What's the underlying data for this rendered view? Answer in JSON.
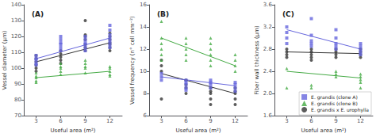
{
  "chart_data": [
    {
      "type": "scatter",
      "title": "(A)",
      "xlabel": "Useful area (m²)",
      "ylabel": "Vessel diameter (μm)",
      "xlim": [
        1.5,
        13.5
      ],
      "xticks": [
        3,
        6,
        9,
        12
      ],
      "ylim": [
        70,
        140
      ],
      "yticks": [
        70,
        80,
        90,
        100,
        110,
        120,
        130,
        140
      ],
      "grid": false,
      "series": [
        {
          "type": "scatter",
          "color": "#333333",
          "marker": "circle",
          "x": [
            3,
            3,
            3,
            3,
            3,
            3,
            6,
            6,
            6,
            6,
            6,
            9,
            9,
            9,
            9,
            9,
            9,
            9,
            12,
            12,
            12,
            12,
            12,
            12,
            12
          ],
          "values": [
            108,
            106,
            104,
            102,
            100,
            98,
            111,
            109,
            107,
            105,
            103,
            130,
            121,
            120,
            118,
            115,
            113,
            111,
            122,
            120,
            118,
            116,
            115,
            113,
            111
          ]
        },
        {
          "type": "scatter",
          "color": "#44aa44",
          "marker": "triangle",
          "x": [
            3,
            3,
            3,
            3,
            3,
            6,
            6,
            6,
            6,
            6,
            9,
            9,
            9,
            9,
            9,
            12,
            12,
            12,
            12,
            12
          ],
          "values": [
            97,
            95,
            94,
            92,
            91,
            103,
            101,
            100,
            98,
            96,
            105,
            103,
            101,
            100,
            97,
            101,
            100,
            98,
            96,
            95
          ]
        },
        {
          "type": "scatter",
          "color": "#6666dd",
          "marker": "square",
          "x": [
            3,
            3,
            3,
            3,
            3,
            6,
            6,
            6,
            6,
            6,
            6,
            9,
            9,
            9,
            9,
            9,
            9,
            12,
            12,
            12,
            12,
            12,
            12,
            12
          ],
          "values": [
            108,
            106,
            105,
            103,
            102,
            120,
            118,
            116,
            115,
            113,
            111,
            120,
            118,
            116,
            115,
            113,
            111,
            127,
            124,
            121,
            119,
            117,
            115,
            113
          ]
        },
        {
          "type": "line",
          "color": "#333333",
          "x": [
            3,
            12
          ],
          "values": [
            104,
            116
          ]
        },
        {
          "type": "line",
          "color": "#6666dd",
          "x": [
            3,
            12
          ],
          "values": [
            106,
            119
          ]
        },
        {
          "type": "line",
          "color": "#44aa44",
          "x": [
            3,
            12
          ],
          "values": [
            94,
            98
          ]
        }
      ]
    },
    {
      "type": "scatter",
      "title": "(B)",
      "xlabel": "Useful area (m²)",
      "ylabel": "Vessel frequency (n° cell mm⁻²)",
      "xlim": [
        1.5,
        13.5
      ],
      "xticks": [
        3,
        6,
        9,
        12
      ],
      "ylim": [
        6,
        16
      ],
      "yticks": [
        6,
        8,
        10,
        12,
        14,
        16
      ],
      "grid": false,
      "series": [
        {
          "type": "scatter",
          "color": "#333333",
          "marker": "circle",
          "x": [
            3,
            3,
            3,
            3,
            6,
            6,
            6,
            6,
            9,
            9,
            9,
            9,
            9,
            12,
            12,
            12,
            12,
            12
          ],
          "values": [
            7.5,
            11.0,
            10.5,
            10.0,
            9.2,
            8.8,
            8.5,
            8.0,
            8.5,
            8.2,
            8.0,
            7.5,
            7.0,
            8.5,
            8.2,
            8.0,
            7.5,
            7.0
          ]
        },
        {
          "type": "scatter",
          "color": "#44aa44",
          "marker": "triangle",
          "x": [
            3,
            3,
            3,
            3,
            3,
            3,
            6,
            6,
            6,
            6,
            6,
            9,
            9,
            9,
            9,
            9,
            9,
            12,
            12,
            12,
            12
          ],
          "values": [
            14.5,
            13.0,
            12.5,
            12.0,
            11.5,
            11.0,
            13.0,
            12.5,
            12.0,
            11.5,
            11.0,
            13.0,
            12.5,
            12.0,
            11.5,
            11.0,
            10.5,
            11.5,
            11.0,
            10.5,
            10.0
          ]
        },
        {
          "type": "scatter",
          "color": "#6666dd",
          "marker": "square",
          "x": [
            3,
            3,
            3,
            6,
            6,
            6,
            6,
            6,
            9,
            9,
            9,
            9,
            12,
            12,
            12,
            12
          ],
          "values": [
            9.8,
            9.5,
            9.2,
            9.2,
            9.0,
            8.8,
            8.5,
            8.3,
            9.2,
            9.0,
            8.8,
            8.5,
            9.0,
            8.8,
            8.5,
            8.2
          ]
        },
        {
          "type": "line",
          "color": "#333333",
          "x": [
            3,
            12
          ],
          "values": [
            9.8,
            8.0
          ]
        },
        {
          "type": "line",
          "color": "#6666dd",
          "x": [
            3,
            12
          ],
          "values": [
            9.5,
            8.7
          ]
        },
        {
          "type": "line",
          "color": "#44aa44",
          "x": [
            3,
            12
          ],
          "values": [
            13.0,
            10.5
          ]
        }
      ]
    },
    {
      "type": "scatter",
      "title": "(C)",
      "xlabel": "Useful area (m²)",
      "ylabel": "Fiber wall thickness (μm)",
      "xlim": [
        1.5,
        13.5
      ],
      "xticks": [
        3,
        6,
        9,
        12
      ],
      "ylim": [
        1.6,
        3.6
      ],
      "yticks": [
        1.6,
        {
          "value": 2.0,
          "label": "2.0"
        },
        2.4,
        2.8,
        3.2,
        3.6
      ],
      "grid": false,
      "legend": "lower right",
      "series": [
        {
          "type": "scatter",
          "name": "E. grandis x E. urophylla",
          "color": "#333333",
          "marker": "circle",
          "x": [
            3,
            3,
            3,
            3,
            6,
            6,
            6,
            6,
            6,
            9,
            9,
            9,
            9,
            12,
            12,
            12,
            12
          ],
          "values": [
            2.8,
            2.75,
            2.7,
            2.65,
            2.8,
            2.75,
            2.7,
            2.65,
            2.6,
            2.8,
            2.75,
            2.7,
            2.65,
            2.8,
            2.75,
            2.7,
            2.65
          ]
        },
        {
          "type": "scatter",
          "name": "E. grandis (clone B)",
          "color": "#44aa44",
          "marker": "triangle",
          "x": [
            3,
            3,
            6,
            6,
            9,
            9,
            9,
            12,
            12,
            12,
            12,
            12
          ],
          "values": [
            2.45,
            2.1,
            2.15,
            2.1,
            2.4,
            2.35,
            2.3,
            2.35,
            2.3,
            2.25,
            2.2,
            2.1
          ]
        },
        {
          "type": "scatter",
          "name": "E. grandis (clone A)",
          "color": "#6666dd",
          "marker": "square",
          "x": [
            3,
            3,
            3,
            3,
            6,
            6,
            6,
            6,
            6,
            9,
            9,
            9,
            9,
            9,
            12,
            12,
            12,
            12,
            12
          ],
          "values": [
            3.2,
            3.1,
            3.0,
            2.9,
            3.35,
            3.05,
            2.95,
            2.9,
            2.85,
            3.15,
            3.0,
            2.9,
            2.85,
            2.8,
            2.9,
            2.85,
            2.8,
            2.75,
            2.7
          ]
        },
        {
          "type": "line",
          "color": "#333333",
          "x": [
            3,
            12
          ],
          "values": [
            2.75,
            2.72
          ]
        },
        {
          "type": "line",
          "color": "#6666dd",
          "x": [
            3,
            12
          ],
          "values": [
            3.15,
            2.8
          ]
        },
        {
          "type": "line",
          "color": "#44aa44",
          "x": [
            3,
            12
          ],
          "values": [
            2.4,
            2.28
          ]
        }
      ]
    }
  ]
}
